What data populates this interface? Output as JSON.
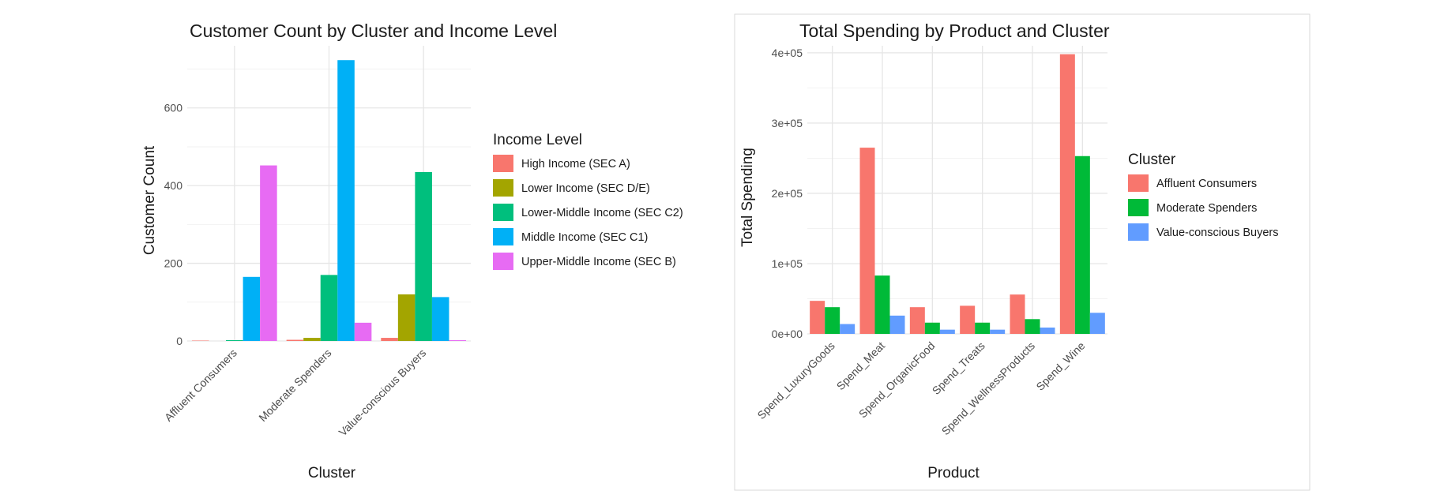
{
  "chart_data": [
    {
      "type": "bar",
      "title": "Customer Count by Cluster and Income Level",
      "xlabel": "Cluster",
      "ylabel": "Customer Count",
      "categories": [
        "Affluent Consumers",
        "Moderate Spenders",
        "Value-conscious Buyers"
      ],
      "ylim": [
        0,
        760
      ],
      "yticks": [
        0,
        200,
        400,
        600
      ],
      "ytick_labels": [
        "0",
        "200",
        "400",
        "600"
      ],
      "grid": true,
      "legend": {
        "title": "Income Level",
        "position": "right"
      },
      "series": [
        {
          "name": "High Income (SEC A)",
          "color": "#F8766D",
          "values": [
            1,
            3,
            8
          ]
        },
        {
          "name": "Lower Income (SEC D/E)",
          "color": "#A3A500",
          "values": [
            0,
            8,
            120
          ]
        },
        {
          "name": "Lower-Middle Income (SEC C2)",
          "color": "#00BF7D",
          "values": [
            2,
            170,
            435
          ]
        },
        {
          "name": "Middle Income (SEC C1)",
          "color": "#00B0F6",
          "values": [
            165,
            723,
            113
          ]
        },
        {
          "name": "Upper-Middle Income (SEC B)",
          "color": "#E76BF3",
          "values": [
            452,
            47,
            2
          ]
        }
      ]
    },
    {
      "type": "bar",
      "title": "Total Spending by Product and Cluster",
      "xlabel": "Product",
      "ylabel": "Total Spending",
      "categories": [
        "Spend_LuxuryGoods",
        "Spend_Meat",
        "Spend_OrganicFood",
        "Spend_Treats",
        "Spend_WellnessProducts",
        "Spend_Wine"
      ],
      "ylim": [
        0,
        410000
      ],
      "yticks": [
        0,
        100000,
        200000,
        300000,
        400000
      ],
      "ytick_labels": [
        "0e+00",
        "1e+05",
        "2e+05",
        "3e+05",
        "4e+05"
      ],
      "grid": true,
      "legend": {
        "title": "Cluster",
        "position": "right"
      },
      "series": [
        {
          "name": "Affluent Consumers",
          "color": "#F8766D",
          "values": [
            47000,
            265000,
            38000,
            40000,
            56000,
            398000
          ]
        },
        {
          "name": "Moderate Spenders",
          "color": "#00BA38",
          "values": [
            38000,
            83000,
            16000,
            16000,
            21000,
            253000
          ]
        },
        {
          "name": "Value-conscious Buyers",
          "color": "#619CFF",
          "values": [
            14000,
            26000,
            6000,
            6000,
            9000,
            30000
          ]
        }
      ]
    }
  ]
}
